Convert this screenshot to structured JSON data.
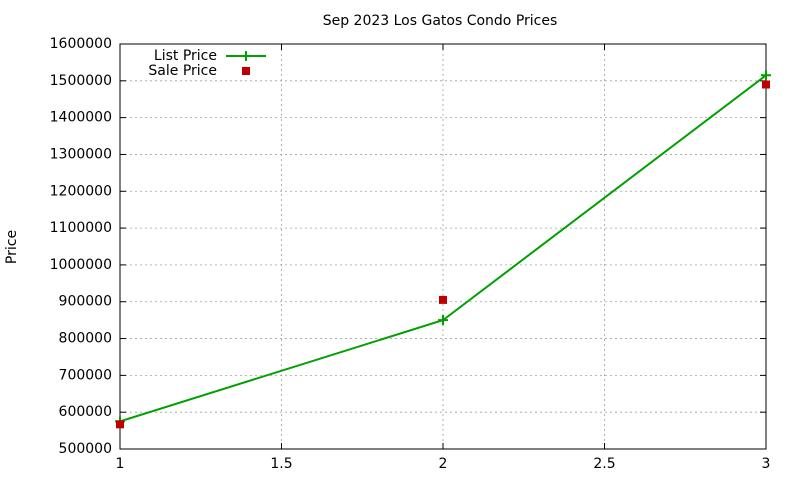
{
  "chart_data": {
    "type": "line",
    "title": "Sep 2023 Los Gatos Condo Prices",
    "y_label": "Price",
    "x": [
      1,
      2,
      3
    ],
    "series": [
      {
        "name": "List Price",
        "color": "#00a000",
        "style": "linespoints",
        "values": [
          575000,
          850000,
          1515000
        ]
      },
      {
        "name": "Sale Price",
        "color": "#c00000",
        "style": "points",
        "values": [
          567000,
          905000,
          1490000
        ]
      }
    ],
    "xlim": [
      1,
      3
    ],
    "xticks": [
      1,
      1.5,
      2,
      2.5,
      3
    ],
    "ylim": [
      500000,
      1600000
    ],
    "yticks": [
      500000,
      600000,
      700000,
      800000,
      900000,
      1000000,
      1100000,
      1200000,
      1300000,
      1400000,
      1500000,
      1600000
    ],
    "grid": true,
    "legend": "top-left"
  }
}
